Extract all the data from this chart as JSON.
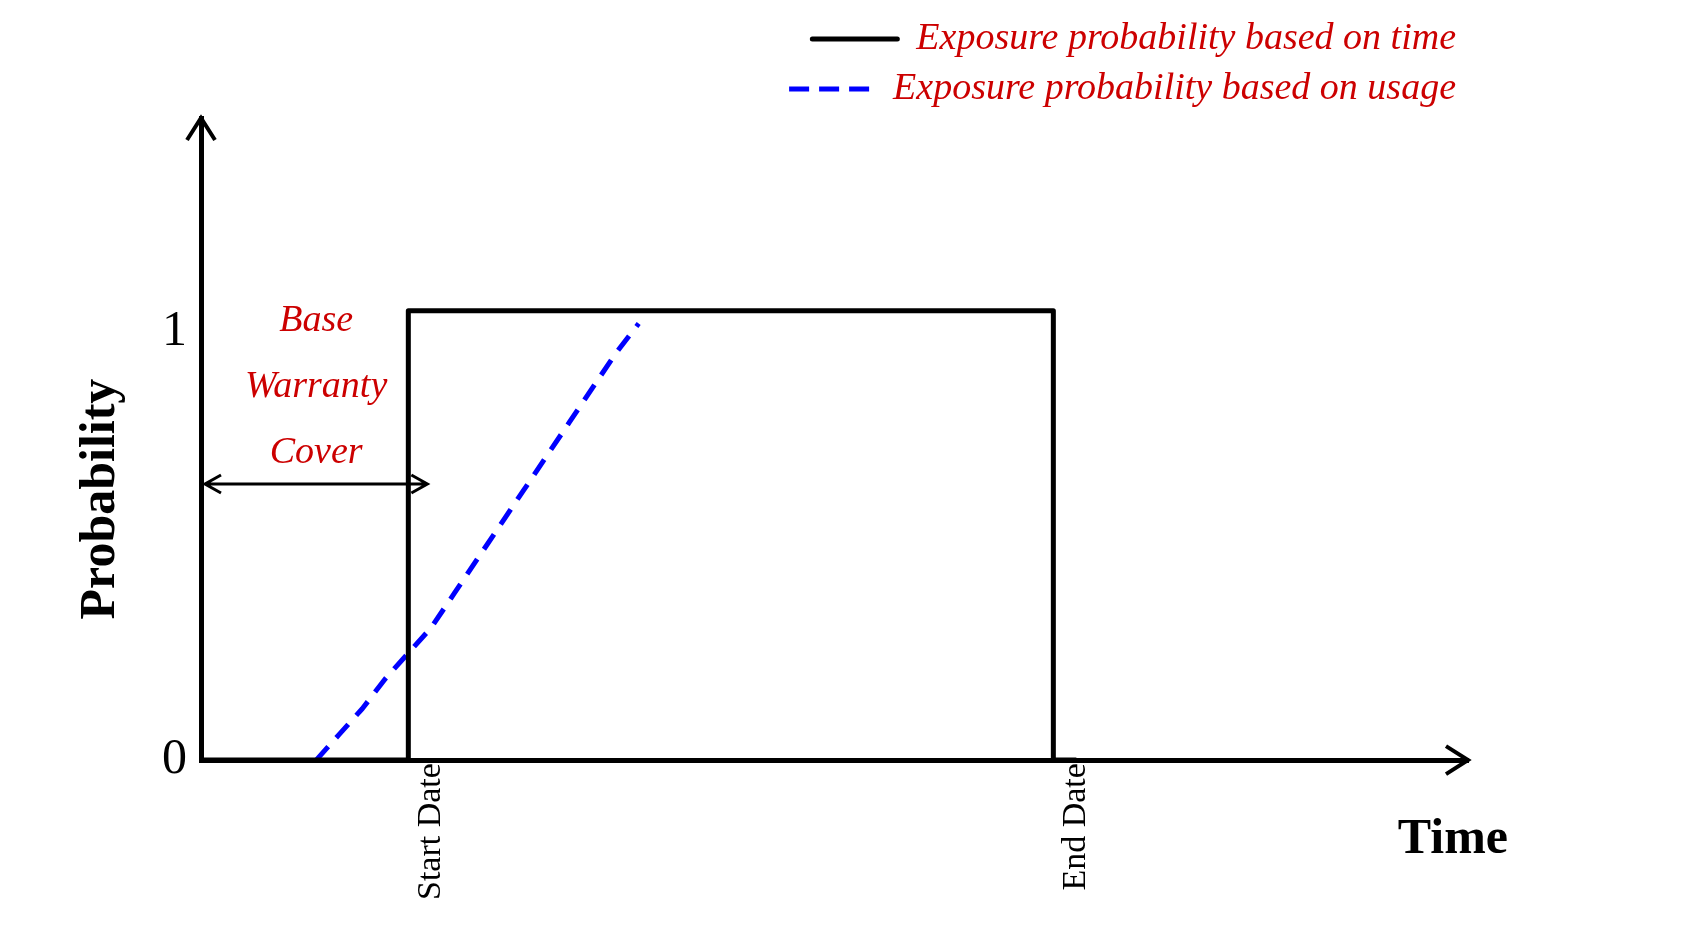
{
  "chart_data": {
    "type": "line",
    "xlabel": "Time",
    "ylabel": "Probability",
    "categories": [
      null,
      null,
      null,
      null,
      null,
      null,
      null,
      null,
      null,
      null,
      "Start Date",
      null,
      null,
      null,
      null,
      null,
      null,
      null,
      null,
      null,
      null,
      null,
      null,
      null,
      null,
      null,
      null,
      null,
      null,
      null,
      null,
      null,
      null,
      null,
      null,
      null,
      null,
      null,
      "End Date",
      null,
      null,
      null,
      null,
      null,
      null,
      null,
      null,
      null,
      null,
      null,
      null,
      null,
      null,
      null,
      null,
      null
    ],
    "ylim": [
      0,
      1.5
    ],
    "yticks": [
      0,
      1
    ],
    "series": [
      {
        "name": "Exposure probability based on time",
        "type": "step",
        "color": "#000000",
        "line_style": "solid",
        "values": [
          0,
          0,
          0,
          0,
          0,
          0,
          0,
          0,
          0,
          0,
          1.05,
          1.05,
          1.05,
          1.05,
          1.05,
          1.05,
          1.05,
          1.05,
          1.05,
          1.05,
          1.05,
          1.05,
          1.05,
          1.05,
          1.05,
          1.05,
          1.05,
          1.05,
          1.05,
          1.05,
          1.05,
          1.05,
          1.05,
          1.05,
          1.05,
          1.05,
          1.05,
          1.05,
          0,
          null,
          null,
          null,
          null,
          null,
          null,
          null,
          null,
          null,
          null,
          null,
          null,
          null,
          null,
          null,
          null,
          null
        ]
      },
      {
        "name": "Exposure probability based on usage",
        "color": "#0000ff",
        "line_style": "dashed",
        "values": [
          null,
          null,
          null,
          null,
          null,
          0,
          0.06,
          0.12,
          0.19,
          0.25,
          0.31,
          0.39,
          0.47,
          0.55,
          0.63,
          0.71,
          0.79,
          0.87,
          0.95,
          1.02,
          null,
          null,
          null,
          null,
          null,
          null,
          null,
          null,
          null,
          null,
          null,
          null,
          null,
          null,
          null,
          null,
          null,
          null,
          null,
          null,
          null,
          null,
          null,
          null,
          null,
          null,
          null,
          null,
          null,
          null,
          null,
          null,
          null,
          null,
          null,
          null
        ]
      }
    ],
    "annotations": [
      "Base Warranty Cover"
    ],
    "grid": false,
    "legend": "top right",
    "marker": "none"
  }
}
